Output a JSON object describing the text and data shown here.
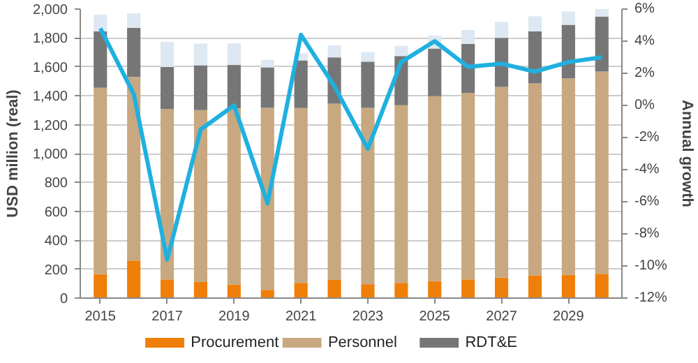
{
  "chart_data": {
    "type": "bar",
    "stacked": true,
    "xlabel": null,
    "ylabel": "USD million (real)",
    "y2label": "Annual growth",
    "x": [
      2015,
      2016,
      2017,
      2018,
      2019,
      2020,
      2021,
      2022,
      2023,
      2024,
      2025,
      2026,
      2027,
      2028,
      2029,
      2030
    ],
    "series": [
      {
        "name": "Procurement",
        "color": "#f07f09",
        "values": [
          165,
          260,
          129,
          111,
          93,
          57,
          105,
          126,
          96,
          105,
          117,
          129,
          141,
          156,
          161,
          168
        ]
      },
      {
        "name": "Personnel",
        "color": "#c8a880",
        "values": [
          1290,
          1270,
          1180,
          1190,
          1220,
          1260,
          1210,
          1220,
          1220,
          1230,
          1280,
          1290,
          1320,
          1330,
          1360,
          1400
        ]
      },
      {
        "name": "RDT&E",
        "color": "#767676",
        "values": [
          390,
          340,
          290,
          310,
          300,
          280,
          330,
          320,
          320,
          340,
          330,
          340,
          340,
          360,
          370,
          380
        ]
      },
      {
        "color": "#dde8f2",
        "values": [
          116,
          101,
          174,
          150,
          149,
          52,
          49,
          83,
          66,
          71,
          90,
          96,
          111,
          104,
          92,
          54
        ]
      },
      {
        "type": "line",
        "axis": "y2",
        "color": "#1fb0e0",
        "values": [
          4.8,
          0.7,
          -9.6,
          -1.5,
          0.0,
          -6.1,
          4.4,
          1.2,
          -2.7,
          2.7,
          4.0,
          2.4,
          2.6,
          2.1,
          2.7,
          3.0
        ]
      }
    ],
    "xlim": [
      2014.4,
      2030.6
    ],
    "xticks": [
      2015,
      2017,
      2019,
      2021,
      2023,
      2025,
      2027,
      2029
    ],
    "ylim": [
      0,
      2000
    ],
    "yticks": [
      0,
      200,
      400,
      600,
      800,
      {
        "value": 1000,
        "label": "1,000"
      },
      {
        "value": 1200,
        "label": "1,200"
      },
      {
        "value": 1400,
        "label": "1,400"
      },
      {
        "value": 1600,
        "label": "1,600"
      },
      {
        "value": 1800,
        "label": "1,800"
      },
      {
        "value": 2000,
        "label": "2,000"
      }
    ],
    "y2lim": [
      -12,
      6
    ],
    "y2ticks": [
      {
        "value": -12,
        "label": "-12%"
      },
      {
        "value": -10,
        "label": "-10%"
      },
      {
        "value": -8,
        "label": "-8%"
      },
      {
        "value": -6,
        "label": "-6%"
      },
      {
        "value": -4,
        "label": "-4%"
      },
      {
        "value": -2,
        "label": "-2%"
      },
      {
        "value": 0,
        "label": "0%"
      },
      {
        "value": 2,
        "label": "2%"
      },
      {
        "value": 4,
        "label": "4%"
      },
      {
        "value": 6,
        "label": "6%"
      }
    ],
    "grid": "y",
    "legend": "bottom"
  }
}
